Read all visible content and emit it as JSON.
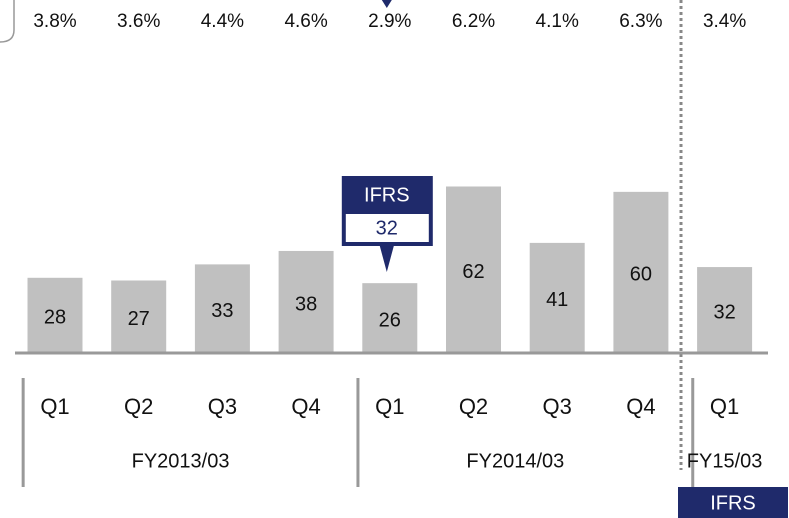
{
  "chart_data": {
    "type": "bar",
    "categories": [
      "Q1",
      "Q2",
      "Q3",
      "Q4",
      "Q1",
      "Q2",
      "Q3",
      "Q4",
      "Q1"
    ],
    "values": [
      28,
      27,
      33,
      38,
      26,
      62,
      41,
      60,
      32
    ],
    "color": "#c0c0c0",
    "ylim": [
      0,
      70
    ],
    "rate_labels": [
      "3.8%",
      "3.6%",
      "4.4%",
      "4.6%",
      "2.9%",
      "6.2%",
      "4.1%",
      "6.3%",
      "3.4%"
    ],
    "groups": [
      {
        "label": "FY2013/03",
        "from": 0,
        "to": 3
      },
      {
        "label": "FY2014/03",
        "from": 4,
        "to": 7
      },
      {
        "label": "FY15/03",
        "from": 8,
        "to": 8
      }
    ],
    "callout": {
      "label": "IFRS",
      "value": "32",
      "index": 4
    },
    "badge": "IFRS"
  }
}
